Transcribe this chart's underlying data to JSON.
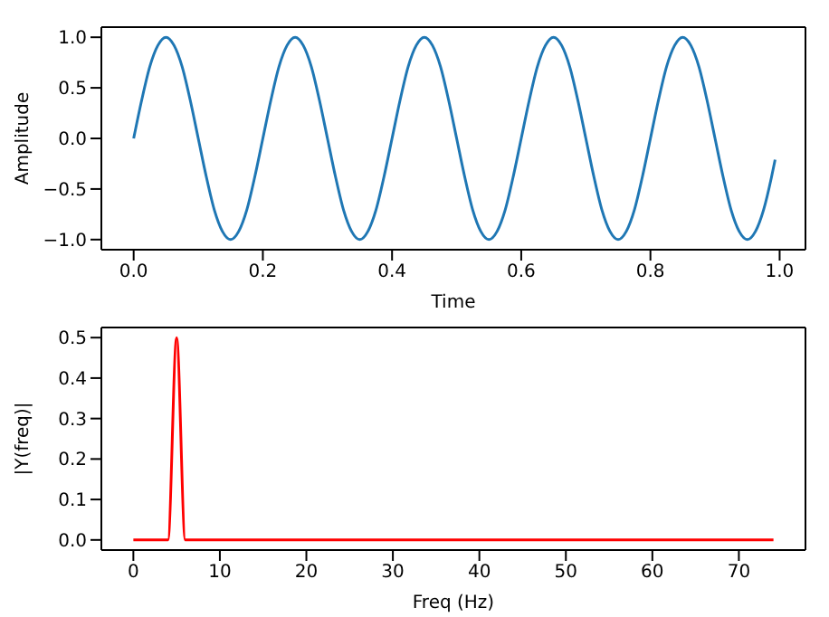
{
  "chart_data": [
    {
      "type": "line",
      "xlabel": "Time",
      "ylabel": "Amplitude",
      "x": [
        0,
        0.0125,
        0.025,
        0.0375,
        0.05,
        0.0625,
        0.075,
        0.0875,
        0.1,
        0.1125,
        0.125,
        0.1375,
        0.15,
        0.1625,
        0.175,
        0.1875,
        0.2,
        0.2125,
        0.225,
        0.2375,
        0.25,
        0.2625,
        0.275,
        0.2875,
        0.3,
        0.3125,
        0.325,
        0.3375,
        0.35,
        0.3625,
        0.375,
        0.3875,
        0.4,
        0.4125,
        0.425,
        0.4375,
        0.45,
        0.4625,
        0.475,
        0.4875,
        0.5,
        0.5125,
        0.525,
        0.5375,
        0.55,
        0.5625,
        0.575,
        0.5875,
        0.6,
        0.6125,
        0.625,
        0.6375,
        0.65,
        0.6625,
        0.675,
        0.6875,
        0.7,
        0.7125,
        0.725,
        0.7375,
        0.75,
        0.7625,
        0.775,
        0.7875,
        0.8,
        0.8125,
        0.825,
        0.8375,
        0.85,
        0.8625,
        0.875,
        0.8875,
        0.9,
        0.9125,
        0.925,
        0.9375,
        0.95,
        0.9625,
        0.975,
        0.9875,
        0.993
      ],
      "series": [
        {
          "color": "#1f77b4",
          "values": [
            0,
            0.38,
            0.71,
            0.92,
            1,
            0.92,
            0.71,
            0.38,
            0,
            -0.38,
            -0.71,
            -0.92,
            -1,
            -0.92,
            -0.71,
            -0.38,
            0,
            0.38,
            0.71,
            0.92,
            1,
            0.92,
            0.71,
            0.38,
            0,
            -0.38,
            -0.71,
            -0.92,
            -1,
            -0.92,
            -0.71,
            -0.38,
            0,
            0.38,
            0.71,
            0.92,
            1,
            0.92,
            0.71,
            0.38,
            0,
            -0.38,
            -0.71,
            -0.92,
            -1,
            -0.92,
            -0.71,
            -0.38,
            0,
            0.38,
            0.71,
            0.92,
            1,
            0.92,
            0.71,
            0.38,
            0,
            -0.38,
            -0.71,
            -0.92,
            -1,
            -0.92,
            -0.71,
            -0.38,
            0,
            0.38,
            0.71,
            0.92,
            1,
            0.92,
            0.71,
            0.38,
            0,
            -0.38,
            -0.71,
            -0.92,
            -1,
            -0.92,
            -0.71,
            -0.38,
            -0.21
          ]
        }
      ],
      "xlim": [
        -0.05,
        1.04
      ],
      "xticks": [
        {
          "value": 0,
          "label": "0.0"
        },
        {
          "value": 0.2,
          "label": "0.2"
        },
        {
          "value": 0.4,
          "label": "0.4"
        },
        {
          "value": 0.6,
          "label": "0.6"
        },
        {
          "value": 0.8,
          "label": "0.8"
        },
        {
          "value": 1,
          "label": "1.0"
        }
      ],
      "ylim": [
        -1.1,
        1.1
      ],
      "yticks": [
        {
          "value": -1,
          "label": "−1.0"
        },
        {
          "value": -0.5,
          "label": "−0.5"
        },
        {
          "value": 0,
          "label": "0.0"
        },
        {
          "value": 0.5,
          "label": "0.5"
        },
        {
          "value": 1,
          "label": "1.0"
        }
      ]
    },
    {
      "type": "line",
      "xlabel": "Freq (Hz)",
      "ylabel": "|Y(freq)|",
      "x": [
        0,
        4,
        5,
        6,
        74
      ],
      "series": [
        {
          "color": "#ff0000",
          "values": [
            0,
            0,
            0.5,
            0,
            0
          ]
        }
      ],
      "xlim": [
        -3.7,
        77.7
      ],
      "xticks": [
        0,
        10,
        20,
        30,
        40,
        50,
        60,
        70
      ],
      "ylim": [
        -0.025,
        0.525
      ],
      "yticks": [
        {
          "value": 0,
          "label": "0.0"
        },
        {
          "value": 0.1,
          "label": "0.1"
        },
        {
          "value": 0.2,
          "label": "0.2"
        },
        {
          "value": 0.3,
          "label": "0.3"
        },
        {
          "value": 0.4,
          "label": "0.4"
        },
        {
          "value": 0.5,
          "label": "0.5"
        }
      ]
    }
  ]
}
